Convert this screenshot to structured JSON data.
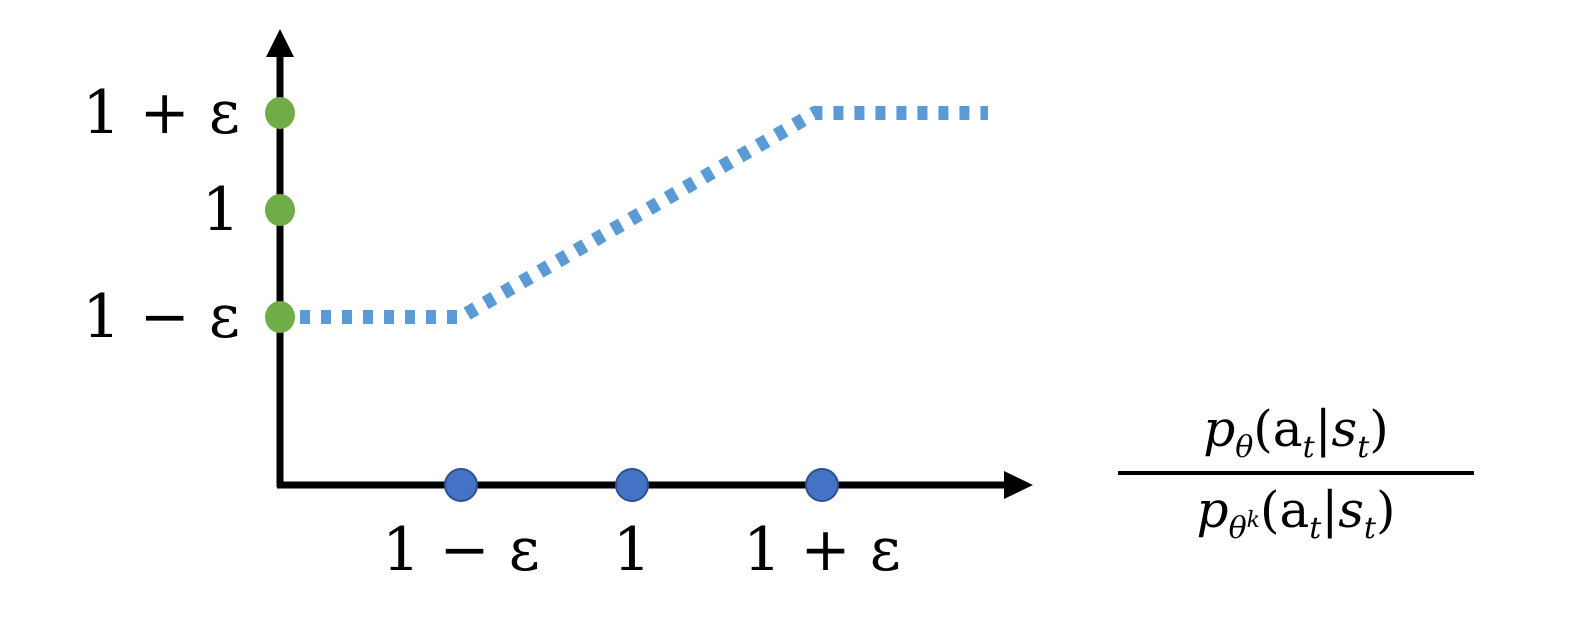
{
  "chart_data": {
    "type": "line",
    "title": "",
    "xlabel": {
      "numerator": {
        "p": "p",
        "sub": "θ",
        "args": "(a",
        "args_sub": "t",
        "bar": "|s",
        "bar_sub": "t",
        "close": ")"
      },
      "denominator": {
        "p": "p",
        "sub": "θ",
        "sup": "k",
        "args": "(a",
        "args_sub": "t",
        "bar": "|s",
        "bar_sub": "t",
        "close": ")"
      }
    },
    "ylabel": "",
    "x_ticks": [
      "1 − ε",
      "1",
      "1 + ε"
    ],
    "y_ticks": [
      "1 − ε",
      "1",
      "1 + ε"
    ],
    "series": [
      {
        "style": "dotted",
        "color": "#5b9bd5",
        "points": [
          [
            "start",
            "1 − ε"
          ],
          [
            "1 − ε",
            "1 − ε"
          ],
          [
            "1 + ε",
            "1 + ε"
          ],
          [
            "end",
            "1 + ε"
          ]
        ]
      }
    ],
    "x_marker_color": "#4472c4",
    "y_marker_color": "#70ad47",
    "grid": false,
    "legend": "none"
  }
}
